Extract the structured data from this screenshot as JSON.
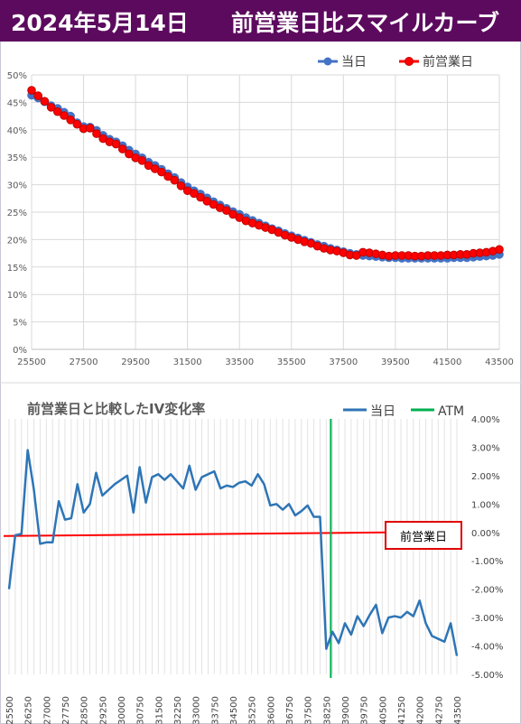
{
  "header": {
    "date": "2024年5月14日",
    "title": "前営業日比スマイルカーブ"
  },
  "colors": {
    "header_bg": "#5c0a5e",
    "today": "#4472c4",
    "prev_day": "#ff0000",
    "change_line": "#2e75b6",
    "atm": "#00b050",
    "zero_line": "#ff0000"
  },
  "chart_data": [
    {
      "type": "line",
      "legend": [
        "当日",
        "前営業日"
      ],
      "legend_position": "top-right",
      "x_ticks": [
        "25500",
        "27500",
        "29500",
        "31500",
        "33500",
        "35500",
        "37500",
        "39500",
        "41500",
        "43500"
      ],
      "y_ticks": [
        "0%",
        "5%",
        "10%",
        "15%",
        "20%",
        "25%",
        "30%",
        "35%",
        "40%",
        "45%",
        "50%"
      ],
      "xlim": [
        25500,
        43500
      ],
      "ylim": [
        0,
        50
      ],
      "grid": true,
      "x": [
        25500,
        25750,
        26000,
        26250,
        26500,
        26750,
        27000,
        27250,
        27500,
        27750,
        28000,
        28250,
        28500,
        28750,
        29000,
        29250,
        29500,
        29750,
        30000,
        30250,
        30500,
        30750,
        31000,
        31250,
        31500,
        31750,
        32000,
        32250,
        32500,
        32750,
        33000,
        33250,
        33500,
        33750,
        34000,
        34250,
        34500,
        34750,
        35000,
        35250,
        35500,
        35750,
        36000,
        36250,
        36500,
        36750,
        37000,
        37250,
        37500,
        37750,
        38000,
        38250,
        38500,
        38750,
        39000,
        39250,
        39500,
        39750,
        40000,
        40250,
        40500,
        40750,
        41000,
        41250,
        41500,
        41750,
        42000,
        42250,
        42500,
        42750,
        43000,
        43250,
        43500
      ],
      "series": [
        {
          "name": "当日",
          "values": [
            46.3,
            45.8,
            45.1,
            44.4,
            43.9,
            43.2,
            42.5,
            41.3,
            40.6,
            40.5,
            39.9,
            39.0,
            38.3,
            37.8,
            37.1,
            36.3,
            35.6,
            34.9,
            34.1,
            33.5,
            32.8,
            32.0,
            31.3,
            30.4,
            29.6,
            28.9,
            28.3,
            27.6,
            26.9,
            26.3,
            25.7,
            25.1,
            24.6,
            24.0,
            23.5,
            23.0,
            22.5,
            22.0,
            21.6,
            21.1,
            20.7,
            20.3,
            19.9,
            19.5,
            19.1,
            18.8,
            18.4,
            18.1,
            17.8,
            17.5,
            17.3,
            17.1,
            17.0,
            16.9,
            16.8,
            16.7,
            16.7,
            16.6,
            16.6,
            16.6,
            16.6,
            16.6,
            16.6,
            16.6,
            16.6,
            16.7,
            16.7,
            16.7,
            16.8,
            16.9,
            17.0,
            17.1,
            17.3
          ]
        },
        {
          "name": "前営業日",
          "values": [
            47.2,
            46.2,
            45.2,
            44.1,
            43.3,
            42.6,
            41.8,
            41.0,
            40.2,
            40.3,
            39.3,
            38.4,
            37.8,
            37.4,
            36.5,
            35.6,
            34.9,
            34.4,
            33.5,
            32.9,
            32.3,
            31.5,
            30.8,
            29.8,
            28.9,
            28.4,
            27.7,
            27.0,
            26.4,
            25.8,
            25.3,
            24.6,
            24.0,
            23.4,
            23.0,
            22.6,
            22.2,
            21.8,
            21.3,
            20.8,
            20.4,
            20.0,
            19.6,
            19.3,
            18.8,
            18.4,
            18.1,
            17.9,
            17.6,
            17.2,
            17.1,
            17.7,
            17.6,
            17.4,
            17.2,
            17.0,
            17.1,
            17.1,
            17.1,
            17.0,
            17.0,
            17.1,
            17.1,
            17.1,
            17.2,
            17.2,
            17.3,
            17.3,
            17.5,
            17.6,
            17.7,
            17.9,
            18.2
          ]
        }
      ]
    },
    {
      "type": "line",
      "title": "前営業日と比較したIV変化率",
      "legend": [
        "当日",
        "ATM"
      ],
      "legend_position": "top-right",
      "annotation": "前営業日",
      "atm_strike": 38250,
      "y_ticks": [
        "4.00%",
        "3.00%",
        "2.00%",
        "1.00%",
        "0.00%",
        "-1.00%",
        "-2.00%",
        "-3.00%",
        "-4.00%",
        "-5.00%"
      ],
      "ylim": [
        -5,
        4
      ],
      "x_ticks": [
        "25500",
        "26250",
        "27000",
        "27750",
        "28500",
        "29250",
        "30000",
        "30750",
        "31500",
        "32250",
        "33000",
        "33750",
        "34500",
        "35250",
        "36000",
        "36750",
        "37500",
        "38250",
        "39000",
        "39750",
        "40500",
        "41250",
        "42000",
        "42750",
        "43500"
      ],
      "xlim": [
        25500,
        43500
      ],
      "x": [
        25500,
        25750,
        26000,
        26250,
        26500,
        26750,
        27000,
        27250,
        27500,
        27750,
        28000,
        28250,
        28500,
        28750,
        29000,
        29250,
        29500,
        29750,
        30000,
        30250,
        30500,
        30750,
        31000,
        31250,
        31500,
        31750,
        32000,
        32250,
        32500,
        32750,
        33000,
        33250,
        33500,
        33750,
        34000,
        34250,
        34500,
        34750,
        35000,
        35250,
        35500,
        35750,
        36000,
        36250,
        36500,
        36750,
        37000,
        37250,
        37500,
        37750,
        38000,
        38250,
        38500,
        38750,
        39000,
        39250,
        39500,
        39750,
        40000,
        40250,
        40500,
        40750,
        41000,
        41250,
        41500,
        41750,
        42000,
        42250,
        42500,
        42750,
        43000,
        43250,
        43500
      ],
      "series": [
        {
          "name": "当日",
          "values": [
            -2.0,
            -0.1,
            -0.05,
            2.9,
            1.5,
            -0.4,
            -0.35,
            -0.35,
            1.1,
            0.45,
            0.5,
            1.7,
            0.7,
            1.0,
            2.1,
            1.3,
            1.5,
            1.7,
            1.85,
            2.0,
            0.7,
            2.3,
            1.05,
            1.95,
            2.05,
            1.85,
            2.05,
            1.8,
            1.55,
            2.35,
            1.5,
            1.95,
            2.05,
            2.15,
            1.55,
            1.65,
            1.6,
            1.75,
            1.8,
            1.65,
            2.05,
            1.7,
            0.95,
            1.0,
            0.8,
            1.0,
            0.6,
            0.75,
            0.95,
            0.55,
            0.55,
            -4.1,
            -3.5,
            -3.9,
            -3.2,
            -3.6,
            -2.95,
            -3.3,
            -2.9,
            -2.55,
            -3.55,
            -3.0,
            -2.95,
            -3.0,
            -2.8,
            -2.95,
            -2.4,
            -3.2,
            -3.65,
            -3.75,
            -3.85,
            -3.2,
            -4.35
          ]
        }
      ]
    }
  ]
}
